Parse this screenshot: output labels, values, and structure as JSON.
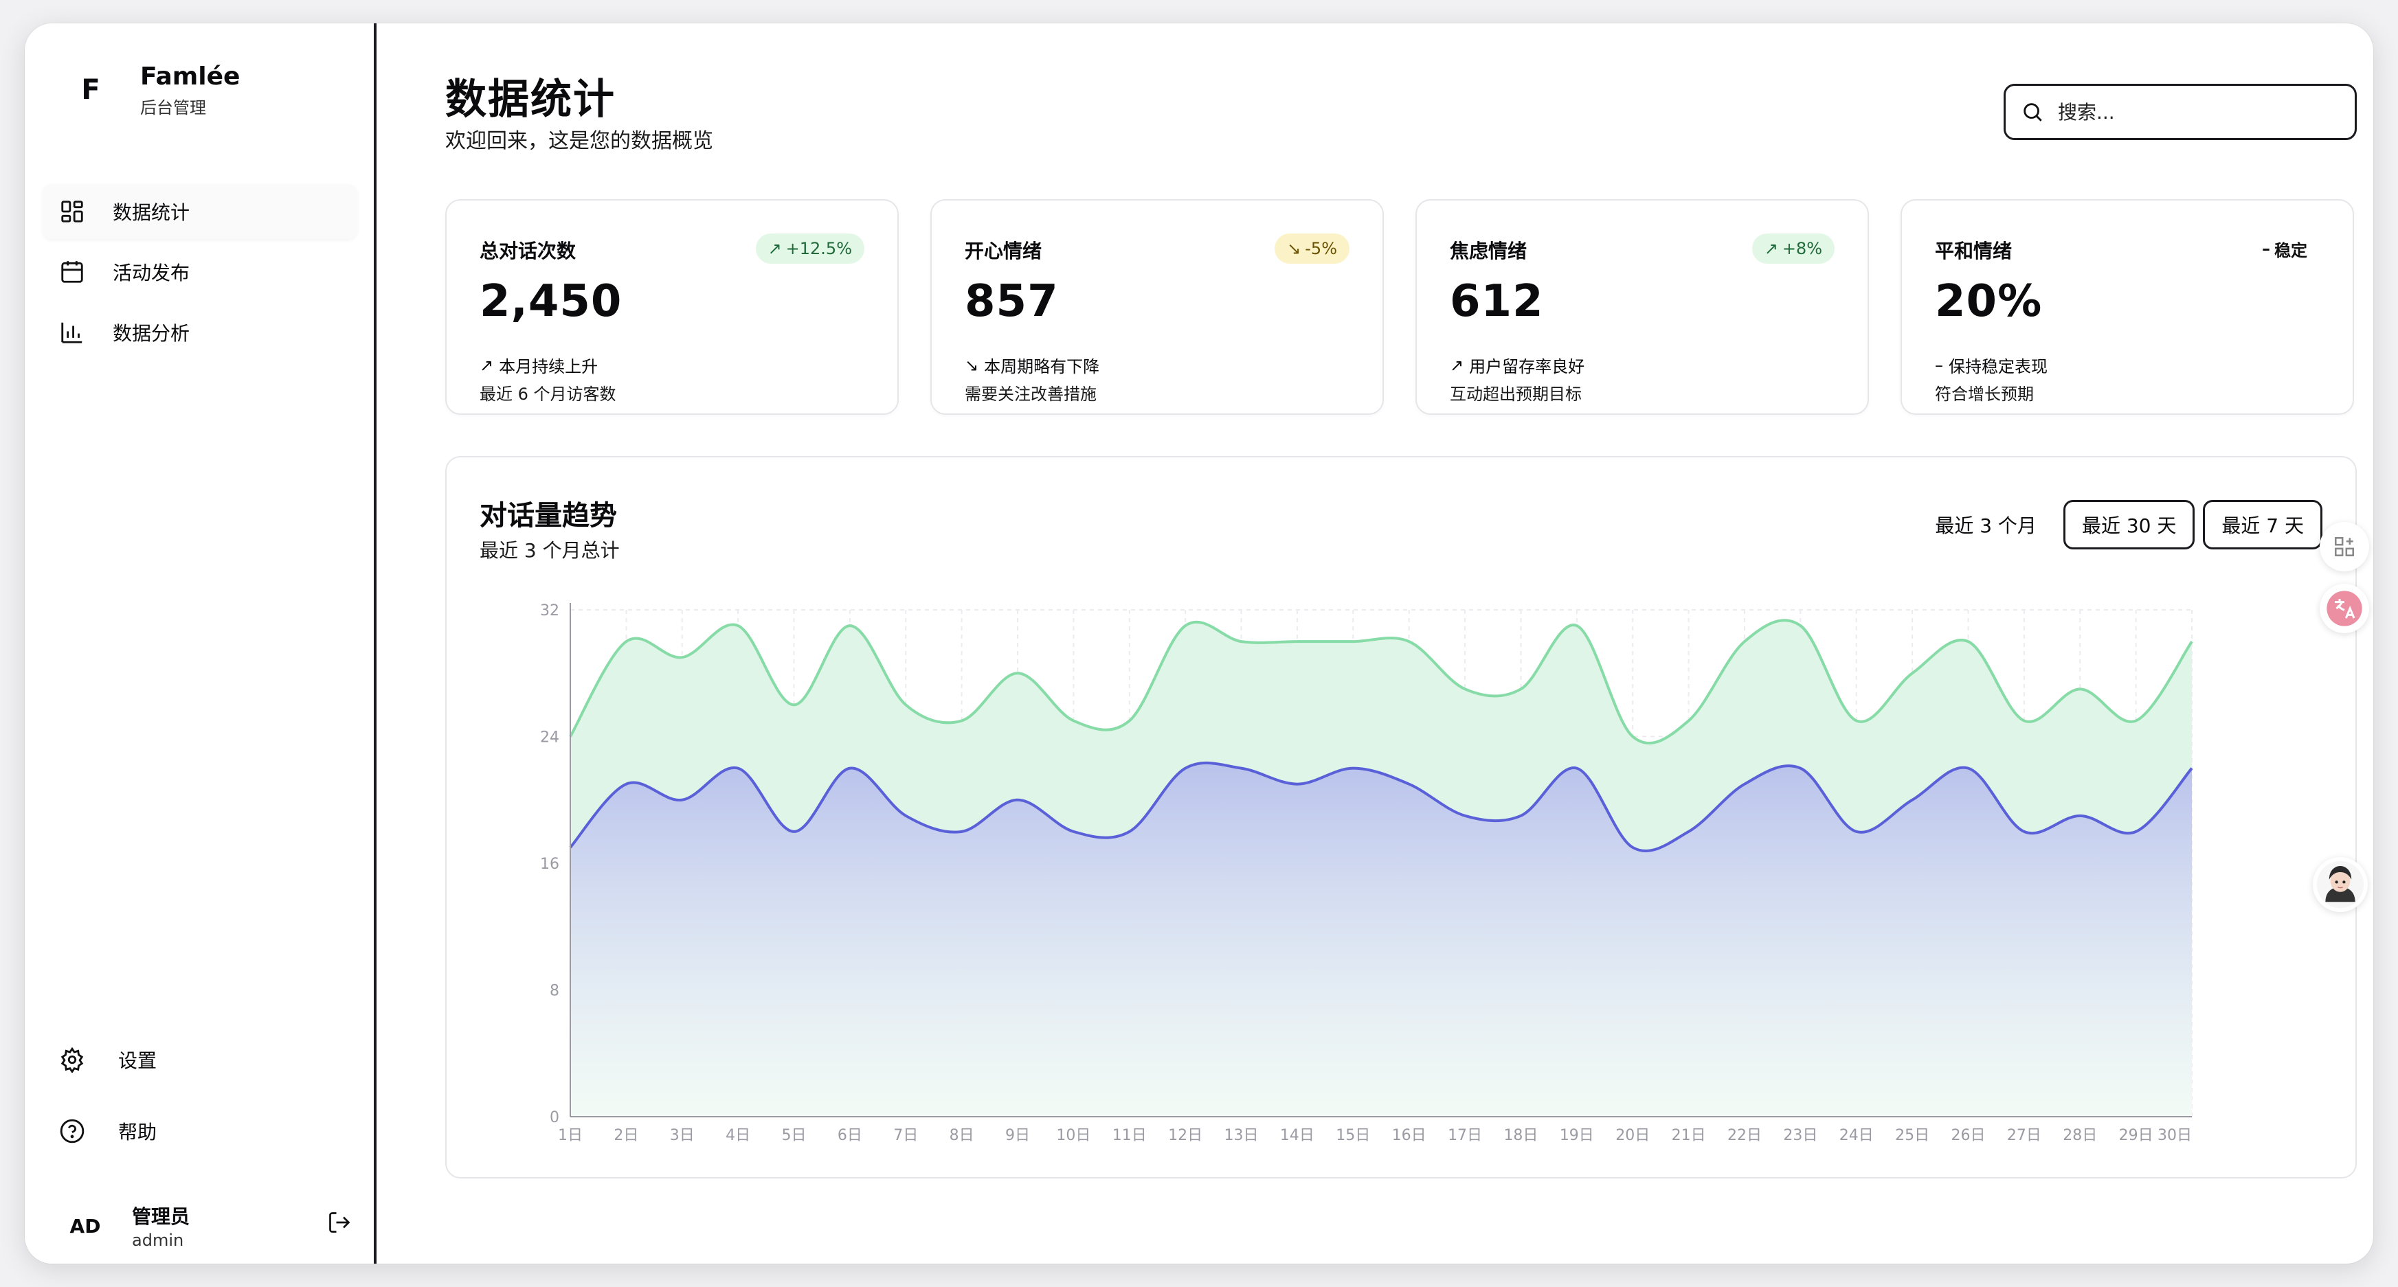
{
  "brand": {
    "logo": "F",
    "name": "Famlée",
    "subtitle": "后台管理"
  },
  "sidebar": {
    "items": [
      {
        "label": "数据统计",
        "icon": "dashboard-icon",
        "active": true
      },
      {
        "label": "活动发布",
        "icon": "calendar-icon",
        "active": false
      },
      {
        "label": "数据分析",
        "icon": "bar-chart-icon",
        "active": false
      }
    ],
    "bottom": [
      {
        "label": "设置",
        "icon": "gear-icon"
      },
      {
        "label": "帮助",
        "icon": "help-icon"
      }
    ],
    "user": {
      "initials": "AD",
      "name": "管理员",
      "role": "admin"
    }
  },
  "header": {
    "title": "数据统计",
    "subtitle": "欢迎回来，这是您的数据概览",
    "search_placeholder": "搜索..."
  },
  "cards": [
    {
      "title": "总对话次数",
      "badge": "+12.5%",
      "badge_type": "up",
      "value": "2,450",
      "trend": "本月持续上升",
      "note": "最近 6 个月访客数"
    },
    {
      "title": "开心情绪",
      "badge": "-5%",
      "badge_type": "down",
      "value": "857",
      "trend": "本周期略有下降",
      "note": "需要关注改善措施"
    },
    {
      "title": "焦虑情绪",
      "badge": "+8%",
      "badge_type": "up",
      "value": "612",
      "trend": "用户留存率良好",
      "note": "互动超出预期目标"
    },
    {
      "title": "平和情绪",
      "badge": "稳定",
      "badge_type": "flat",
      "value": "20%",
      "trend": "保持稳定表现",
      "note": "符合增长预期"
    }
  ],
  "chart_panel": {
    "title": "对话量趋势",
    "subtitle": "最近 3 个月总计",
    "ranges": [
      {
        "label": "最近 3 个月",
        "selected": true
      },
      {
        "label": "最近 30 天",
        "selected": false
      },
      {
        "label": "最近 7 天",
        "selected": false
      }
    ]
  },
  "colors": {
    "green_line": "#86dba7",
    "green_fill": "#dff5e7",
    "blue_line": "#5a60d8",
    "blue_fill_top": "#b7c0ec",
    "axis": "#9a9aa3"
  },
  "chart_data": {
    "type": "area",
    "x": [
      "1日",
      "2日",
      "3日",
      "4日",
      "5日",
      "6日",
      "7日",
      "8日",
      "9日",
      "10日",
      "11日",
      "12日",
      "13日",
      "14日",
      "15日",
      "16日",
      "17日",
      "18日",
      "19日",
      "20日",
      "21日",
      "22日",
      "23日",
      "24日",
      "25日",
      "26日",
      "27日",
      "28日",
      "29日",
      "30日"
    ],
    "series": [
      {
        "values": [
          24,
          30,
          29,
          31,
          26,
          31,
          26,
          25,
          28,
          25,
          25,
          31,
          30,
          30,
          30,
          30,
          27,
          27,
          31,
          24,
          25,
          30,
          31,
          25,
          28,
          30,
          25,
          27,
          25,
          30
        ]
      },
      {
        "values": [
          17,
          21,
          20,
          22,
          18,
          22,
          19,
          18,
          20,
          18,
          18,
          22,
          22,
          21,
          22,
          21,
          19,
          19,
          22,
          17,
          18,
          21,
          22,
          18,
          20,
          22,
          18,
          19,
          18,
          22
        ]
      }
    ],
    "yticks": [
      0,
      8,
      16,
      24,
      32
    ],
    "ylim": [
      0,
      32
    ],
    "grid": true
  }
}
